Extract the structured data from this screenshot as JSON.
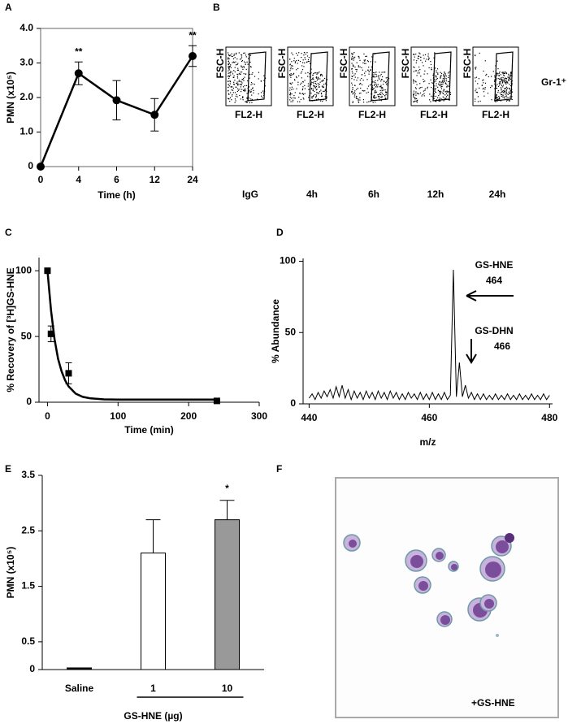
{
  "chart_data": [
    {
      "type": "line",
      "panel": "A",
      "ylabel": "PMN (x10⁵)",
      "xlabel": "Time (h)",
      "categories": [
        "0",
        "4",
        "6",
        "12",
        "24"
      ],
      "values": [
        0,
        2.7,
        1.92,
        1.5,
        3.2
      ],
      "errors": [
        0,
        0.33,
        0.57,
        0.47,
        0.3
      ],
      "value_annotations": [
        null,
        "**",
        null,
        null,
        "**"
      ],
      "marker": "circle",
      "color": "#000000",
      "ylim": [
        0,
        4
      ],
      "yticks": [
        0,
        {
          "value": 1,
          "label": "1.0"
        },
        {
          "value": 2,
          "label": "2.0"
        },
        {
          "value": 3,
          "label": "3.0"
        },
        {
          "value": 4,
          "label": "4.0"
        }
      ]
    },
    {
      "type": "flow_cytometry",
      "panel": "B",
      "ylabel": "FSC-H",
      "xlabel": "FL2-H",
      "gate_label": "Gr-1⁺",
      "samples": [
        "IgG",
        "4h",
        "6h",
        "12h",
        "24h"
      ]
    },
    {
      "type": "scatter",
      "panel": "C",
      "ylabel": "% Recovery of [³H]GS-HNE",
      "xlabel": "Time (min)",
      "x": [
        0,
        5,
        30,
        240
      ],
      "values": [
        100,
        52,
        22,
        1
      ],
      "errors": [
        0,
        6,
        8,
        0
      ],
      "marker": "square",
      "color": "#000000",
      "fit": {
        "x": [
          0,
          5,
          10,
          15,
          20,
          25,
          30,
          40,
          50,
          60,
          80,
          100,
          150,
          200,
          240
        ],
        "values": [
          100,
          70,
          48,
          33,
          23.5,
          16.6,
          12,
          6.5,
          4.1,
          3,
          2.2,
          2,
          2,
          2,
          2
        ]
      },
      "xlim": [
        -12,
        300
      ],
      "ylim": [
        0,
        110
      ],
      "xticks": [
        0,
        100,
        200,
        300
      ],
      "yticks": [
        0,
        50,
        100
      ]
    },
    {
      "type": "line",
      "panel": "D",
      "ylabel": "% Abundance",
      "xlabel": "m/z",
      "color": "#000000",
      "x": [
        440,
        440.5,
        441,
        441.5,
        442,
        442.5,
        443,
        443.5,
        444,
        444.5,
        445,
        445.5,
        446,
        446.5,
        447,
        447.5,
        448,
        448.5,
        449,
        449.5,
        450,
        450.5,
        451,
        451.5,
        452,
        452.5,
        453,
        453.5,
        454,
        454.5,
        455,
        455.5,
        456,
        456.5,
        457,
        457.5,
        458,
        458.5,
        459,
        459.5,
        460,
        460.5,
        461,
        461.5,
        462,
        462.5,
        463,
        463.5,
        464,
        464.5,
        465,
        465.5,
        466,
        466.5,
        467,
        467.5,
        468,
        468.5,
        469,
        469.5,
        470,
        470.5,
        471,
        471.5,
        472,
        472.5,
        473,
        473.5,
        474,
        474.5,
        475,
        475.5,
        476,
        476.5,
        477,
        477.5,
        478,
        478.5,
        479,
        479.5,
        480
      ],
      "values": [
        4,
        7,
        3,
        8,
        4,
        9,
        5,
        10,
        4,
        12,
        5,
        13,
        4,
        10,
        3,
        9,
        4,
        8,
        3,
        9,
        4,
        8,
        3,
        9,
        4,
        8,
        3,
        9,
        4,
        8,
        3,
        7,
        3,
        8,
        4,
        7,
        3,
        8,
        3,
        7,
        3,
        8,
        3,
        7,
        3,
        8,
        3,
        6,
        94,
        5,
        29,
        5,
        13,
        4,
        8,
        3,
        7,
        3,
        7,
        3,
        6,
        3,
        7,
        3,
        6,
        3,
        7,
        3,
        6,
        3,
        7,
        3,
        6,
        3,
        7,
        3,
        6,
        3,
        7,
        3,
        6
      ],
      "peak_labels": [
        {
          "name": "GS-HNE",
          "mz": "464"
        },
        {
          "name": "GS-DHN",
          "mz": "466"
        }
      ],
      "xlim": [
        439,
        480.5
      ],
      "ylim": [
        0,
        102
      ],
      "xticks": [
        440,
        460,
        480
      ],
      "yticks": [
        0,
        50,
        100
      ]
    },
    {
      "type": "bar",
      "panel": "E",
      "ylabel": "PMN (x10⁵)",
      "xlabel": "GS-HNE (µg)",
      "categories": [
        "Saline",
        "1",
        "10"
      ],
      "values": [
        0.03,
        2.1,
        2.7
      ],
      "errors": [
        0,
        0.6,
        0.35
      ],
      "colors": [
        "#000000",
        "#ffffff",
        "#999999"
      ],
      "value_annotations": [
        null,
        null,
        "*"
      ],
      "ylim": [
        0,
        3.5
      ],
      "yticks": [
        0,
        0.5,
        1.5,
        2.5,
        3.5
      ]
    },
    {
      "type": "micrograph",
      "panel": "F",
      "label": "+GS-HNE"
    }
  ]
}
